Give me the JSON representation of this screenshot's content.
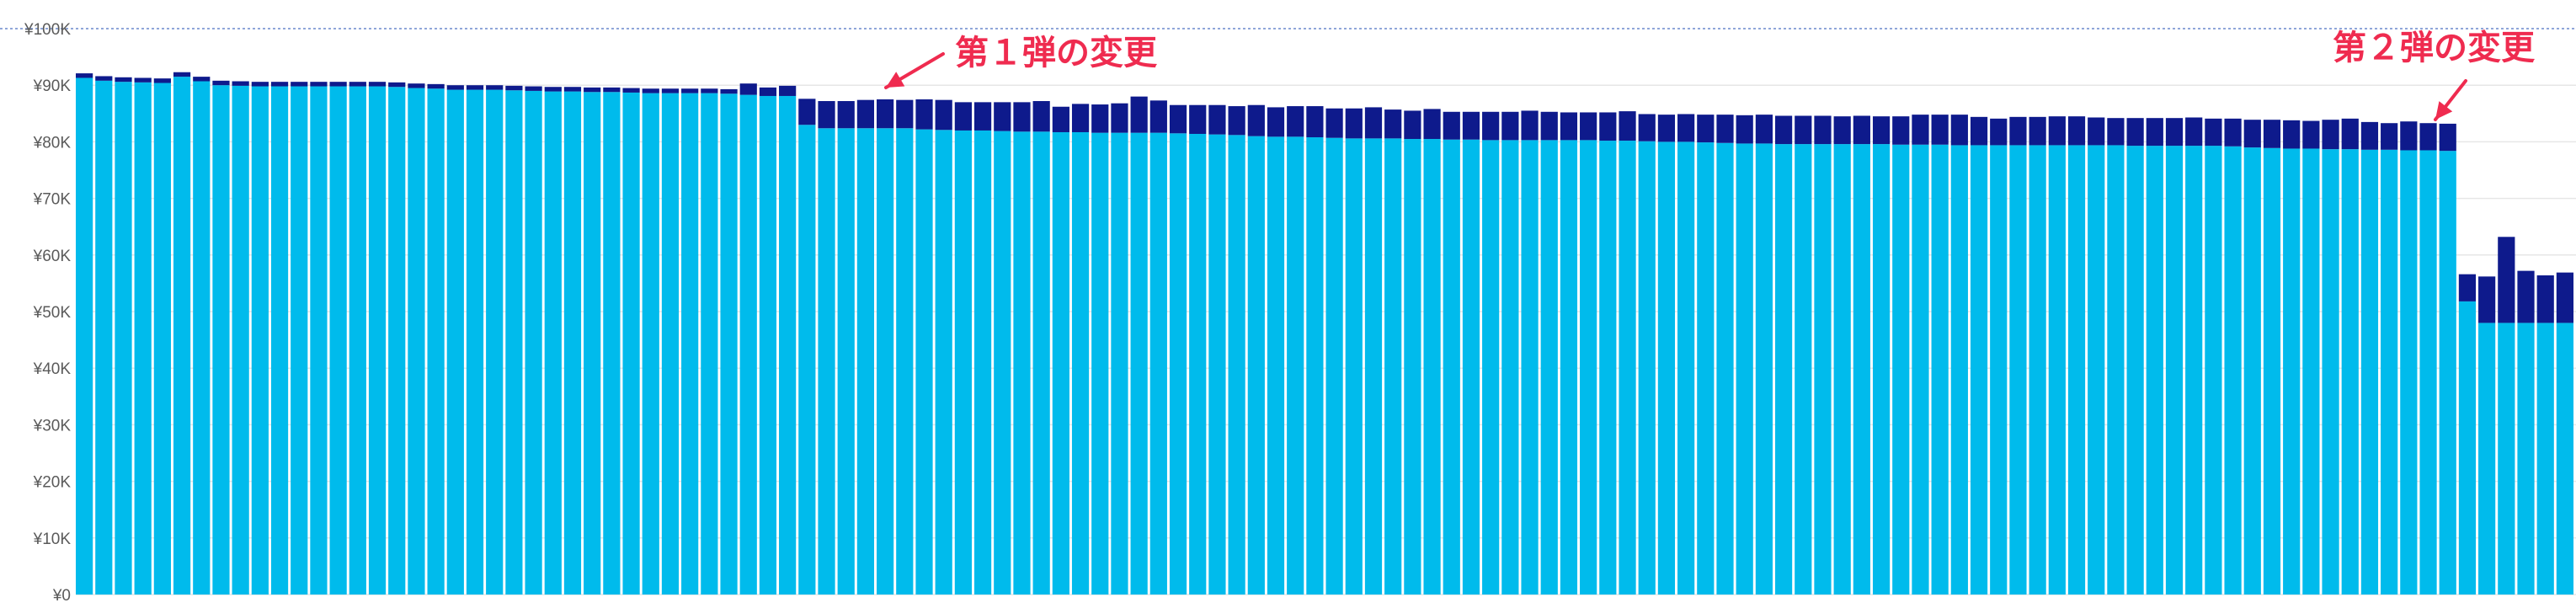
{
  "chart_data": {
    "type": "bar",
    "stacked": true,
    "ylim": [
      0,
      100000
    ],
    "y_ticks": [
      "¥0",
      "¥10K",
      "¥20K",
      "¥30K",
      "¥40K",
      "¥50K",
      "¥60K",
      "¥70K",
      "¥80K",
      "¥90K",
      "¥100K"
    ],
    "grid": true,
    "colors": {
      "base": "#00bbec",
      "top": "#0e1a8c",
      "grid": "#e6e6e6",
      "top_line": "#8fa6d9",
      "annotation": "#ef2b4f"
    },
    "series": [
      {
        "values": [
          91300,
          90800,
          90600,
          90500,
          90400,
          91500,
          90700,
          90000,
          89900,
          89800,
          89800,
          89800,
          89800,
          89800,
          89800,
          89800,
          89700,
          89500,
          89400,
          89200,
          89200,
          89200,
          89100,
          89000,
          88900,
          88900,
          88800,
          88800,
          88700,
          88600,
          88600,
          88600,
          88600,
          88500,
          88300,
          88100,
          88100,
          83000,
          82400,
          82400,
          82400,
          82400,
          82400,
          82200,
          82100,
          82000,
          82000,
          81900,
          81800,
          81800,
          81700,
          81700,
          81600,
          81600,
          81600,
          81600,
          81500,
          81400,
          81300,
          81200,
          81000,
          80900,
          80900,
          80800,
          80700,
          80600,
          80600,
          80600,
          80500,
          80500,
          80400,
          80400,
          80300,
          80300,
          80300,
          80300,
          80300,
          80300,
          80200,
          80200,
          80100,
          80000,
          80000,
          79900,
          79800,
          79700,
          79700,
          79600,
          79600,
          79600,
          79600,
          79600,
          79600,
          79500,
          79500,
          79500,
          79400,
          79400,
          79400,
          79400,
          79400,
          79400,
          79400,
          79400,
          79400,
          79300,
          79300,
          79300,
          79300,
          79300,
          79200,
          79000,
          78900,
          78800,
          78800,
          78700,
          78700,
          78600,
          78600,
          78500,
          78500,
          78400,
          51800,
          48000,
          48000,
          48000,
          48000,
          48000
        ]
      },
      {
        "values": [
          800,
          800,
          800,
          800,
          800,
          800,
          800,
          800,
          800,
          800,
          800,
          800,
          800,
          800,
          800,
          800,
          800,
          800,
          800,
          800,
          800,
          800,
          800,
          800,
          800,
          800,
          800,
          800,
          800,
          800,
          800,
          800,
          800,
          800,
          2000,
          1500,
          1800,
          4600,
          4800,
          4800,
          5000,
          5100,
          5000,
          5300,
          5300,
          5000,
          5000,
          5100,
          5200,
          5400,
          4500,
          5000,
          5000,
          5200,
          6400,
          5700,
          5000,
          5100,
          5200,
          5100,
          5500,
          5200,
          5400,
          5500,
          5200,
          5300,
          5500,
          5100,
          5000,
          5300,
          4900,
          4900,
          5000,
          5000,
          5200,
          5000,
          4900,
          4900,
          5000,
          5200,
          4800,
          4800,
          4900,
          4900,
          5000,
          5000,
          5100,
          5000,
          5000,
          5000,
          4900,
          5000,
          4900,
          5000,
          5300,
          5300,
          5400,
          5000,
          4700,
          5000,
          5000,
          5100,
          5100,
          4900,
          4800,
          4900,
          4900,
          4900,
          5000,
          4800,
          4900,
          4900,
          5000,
          5000,
          4900,
          5200,
          5400,
          4900,
          4700,
          5100,
          4800,
          4800,
          4800,
          8200,
          15200,
          9200,
          8400,
          8900
        ]
      }
    ],
    "annotations": [
      "第１弾の変更",
      "第２弾の変更"
    ]
  }
}
